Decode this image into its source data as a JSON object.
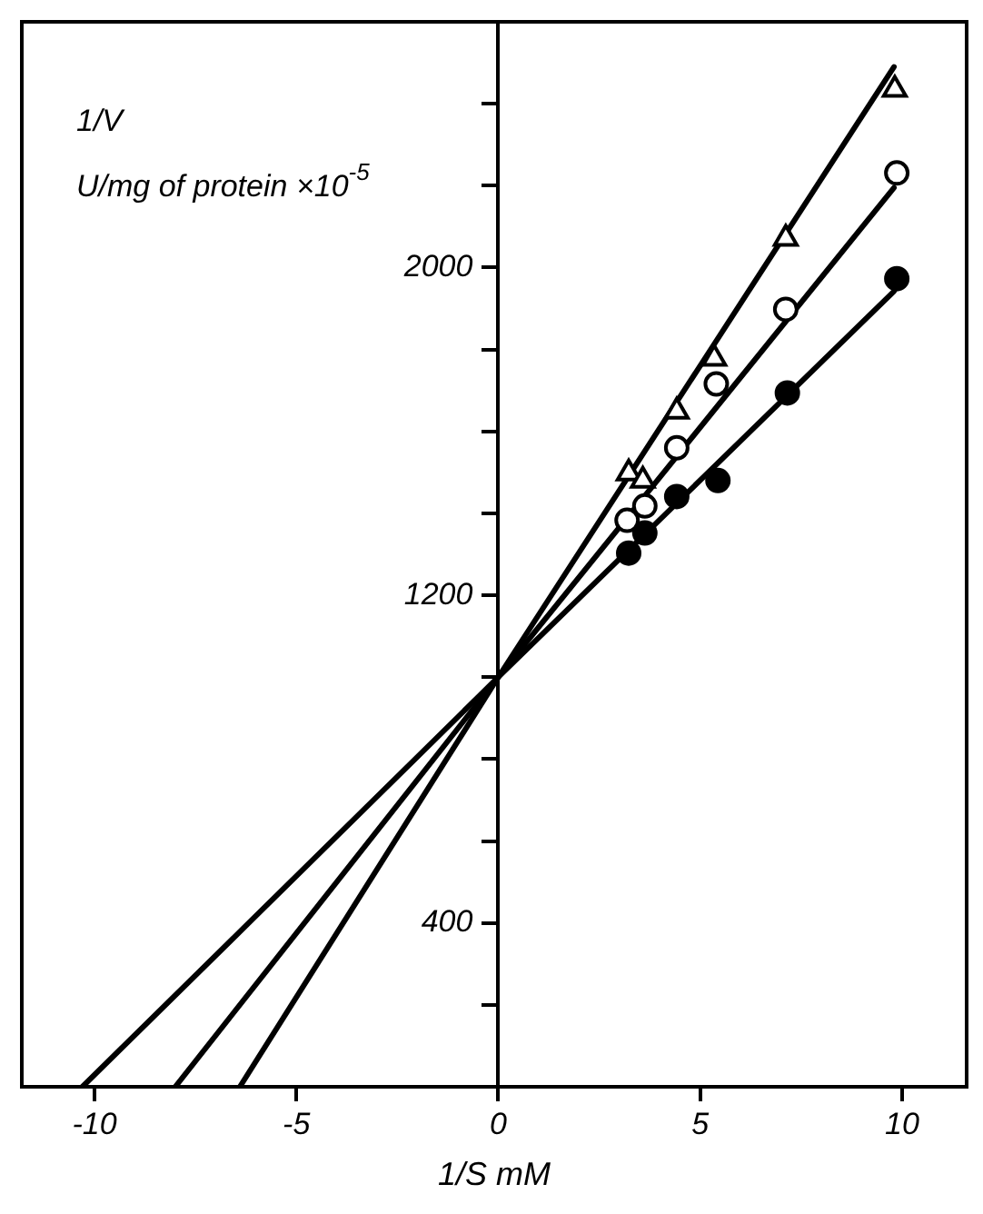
{
  "chart_data": {
    "type": "scatter",
    "xlabel": "1/S mM",
    "ylabel": "1/V\nU/mg of protein ×10$^{-5}$",
    "xlim": [
      -11.8,
      11.6
    ],
    "xticks": [
      -10,
      -5,
      0,
      5,
      10
    ],
    "ylim": [
      0,
      2600
    ],
    "yticks": [
      {
        "value": 200,
        "label": null
      },
      400,
      {
        "value": 600,
        "label": null
      },
      {
        "value": 800,
        "label": null
      },
      {
        "value": 1000,
        "label": null
      },
      1200,
      {
        "value": 1400,
        "label": null
      },
      {
        "value": 1600,
        "label": null
      },
      {
        "value": 1800,
        "label": null
      },
      2000,
      {
        "value": 2200,
        "label": null
      },
      {
        "value": 2400,
        "label": null
      }
    ],
    "grid": false,
    "legend": false,
    "series": [
      {
        "type": "scatter",
        "marker": "triangle",
        "color": "#ffffff",
        "x": [
          3.23,
          3.58,
          4.42,
          5.35,
          7.12,
          9.82
        ],
        "values": [
          1498,
          1480,
          1649,
          1778,
          2071,
          2435
        ]
      },
      {
        "type": "scatter",
        "marker": "circle",
        "color": "#ffffff",
        "x": [
          3.19,
          3.63,
          4.42,
          5.4,
          7.12,
          9.87
        ],
        "values": [
          1383,
          1418,
          1560,
          1716,
          1898,
          2231
        ]
      },
      {
        "type": "scatter",
        "marker": "circle",
        "color": "#000000",
        "x": [
          3.23,
          3.63,
          4.42,
          5.44,
          7.16,
          9.87
        ],
        "values": [
          1303,
          1352,
          1441,
          1480,
          1694,
          1973
        ]
      },
      {
        "type": "line",
        "marker": "none",
        "color": "#000000",
        "x": [
          -6.4,
          0,
          9.8
        ],
        "values": [
          0,
          1000,
          2490
        ]
      },
      {
        "type": "line",
        "marker": "none",
        "color": "#000000",
        "x": [
          -8,
          0,
          9.8
        ],
        "values": [
          0,
          1000,
          2195
        ]
      },
      {
        "type": "line",
        "marker": "none",
        "color": "#000000",
        "x": [
          -10.3,
          0,
          9.8
        ],
        "values": [
          0,
          1000,
          1942
        ]
      }
    ]
  }
}
